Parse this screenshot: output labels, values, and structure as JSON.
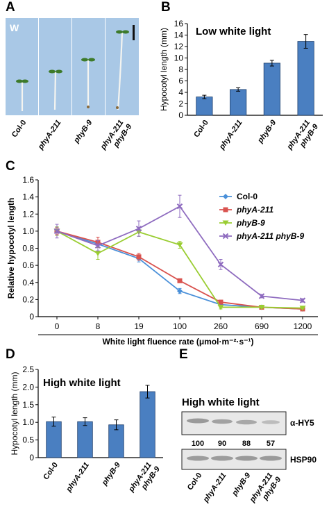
{
  "panels": {
    "A": {
      "letter": "A",
      "w_label": "W",
      "genotypes": [
        {
          "text": "Col-0",
          "italic": false
        },
        {
          "text": "phyA-211",
          "italic": true
        },
        {
          "text": "phyB-9",
          "italic": true
        },
        {
          "text": "phyA-211",
          "text2": "phyB-9",
          "italic": true
        }
      ],
      "photo_bg": "#a9c8e6"
    },
    "B": {
      "letter": "B"
    },
    "C": {
      "letter": "C"
    },
    "D": {
      "letter": "D"
    },
    "E": {
      "letter": "E",
      "title": "High white light",
      "band1_label": "α-HY5",
      "band2_label": "HSP90",
      "quant": [
        "100",
        "90",
        "88",
        "57"
      ],
      "lanes": [
        {
          "text": "Col-0"
        },
        {
          "text": "phyA-211"
        },
        {
          "text": "phyB-9"
        },
        {
          "text": "phyA-211",
          "text2": "phyB-9"
        }
      ]
    }
  },
  "colors": {
    "bar": "#4a7fc1",
    "col0": "#4a90d9",
    "phyA": "#d9534f",
    "phyB": "#9acd32",
    "double": "#8e6bbf"
  },
  "chart_data": [
    {
      "id": "B",
      "type": "bar",
      "title": "Low white light",
      "ylabel": "Hypocotyl length (mm)",
      "ylim": [
        0,
        16
      ],
      "yticks": [
        "0",
        "2",
        "4",
        "6",
        "8",
        "10",
        "12",
        "14",
        "16"
      ],
      "categories": [
        "Col-0",
        "phyA-211",
        "phyB-9",
        "phyA-211 phyB-9"
      ],
      "values": [
        3.2,
        4.5,
        9.1,
        12.9
      ],
      "errors": [
        0.3,
        0.3,
        0.5,
        1.2
      ]
    },
    {
      "id": "C",
      "type": "line",
      "ylabel": "Relative hypocotyl length",
      "xlabel": "White light fluence rate (μmol·m⁻²·s⁻¹)",
      "ylim": [
        0,
        1.6
      ],
      "yticks": [
        "0",
        "0.2",
        "0.4",
        "0.6",
        "0.8",
        "1.0",
        "1.2",
        "1.4",
        "1.6"
      ],
      "x": [
        "0",
        "8",
        "19",
        "100",
        "260",
        "690",
        "1200"
      ],
      "series": [
        {
          "name": "Col-0",
          "color": "#4a90d9",
          "marker": "diamond",
          "values": [
            1.0,
            0.85,
            0.68,
            0.3,
            0.14,
            0.11,
            0.09
          ],
          "errors": [
            0.05,
            0.04,
            0.04,
            0.03,
            0.02,
            0.01,
            0.01
          ]
        },
        {
          "name": "phyA-211",
          "color": "#d9534f",
          "marker": "square",
          "values": [
            1.0,
            0.87,
            0.7,
            0.42,
            0.17,
            0.11,
            0.09
          ],
          "errors": [
            0.04,
            0.06,
            0.04,
            0.02,
            0.02,
            0.01,
            0.01
          ]
        },
        {
          "name": "phyB-9",
          "color": "#9acd32",
          "marker": "triangle",
          "values": [
            1.0,
            0.74,
            0.99,
            0.84,
            0.11,
            0.11,
            0.1
          ],
          "errors": [
            0.05,
            0.07,
            0.05,
            0.04,
            0.02,
            0.01,
            0.01
          ]
        },
        {
          "name": "phyA-211 phyB-9",
          "color": "#8e6bbf",
          "marker": "x",
          "values": [
            1.0,
            0.83,
            1.03,
            1.29,
            0.61,
            0.24,
            0.19
          ],
          "errors": [
            0.08,
            0.06,
            0.09,
            0.13,
            0.06,
            0.02,
            0.02
          ]
        }
      ],
      "legend_placement": "top-right"
    },
    {
      "id": "D",
      "type": "bar",
      "title": "High white light",
      "ylabel": "Hypocotyl length (mm)",
      "ylim": [
        0,
        2.5
      ],
      "yticks": [
        "0",
        "0.5",
        "1.0",
        "1.5",
        "2.0",
        "2.5"
      ],
      "categories": [
        "Col-0",
        "phyA-211",
        "phyB-9",
        "phyA-211 phyB-9"
      ],
      "values": [
        1.02,
        1.02,
        0.93,
        1.87
      ],
      "errors": [
        0.13,
        0.11,
        0.14,
        0.18
      ]
    }
  ]
}
